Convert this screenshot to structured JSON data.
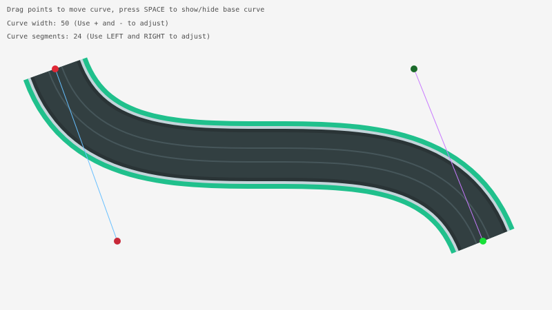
{
  "instructions": {
    "line1": "Drag points to move curve, press SPACE to show/hide base curve",
    "line2": "Curve width: 50 (Use + and - to adjust)",
    "line3": "Curve segments: 24 (Use LEFT and RIGHT to adjust)"
  },
  "curve": {
    "width": 50,
    "segments": 24,
    "start": {
      "x": 80,
      "y": 100
    },
    "start_control": {
      "x": 170,
      "y": 350
    },
    "end_control": {
      "x": 600,
      "y": 100
    },
    "end": {
      "x": 700,
      "y": 350
    }
  },
  "colors": {
    "background": "#f5f5f5",
    "border": "#20c08c",
    "edge": "#c4d4da",
    "shoulder": "#2a3436",
    "asphalt": "#323f41",
    "lane_line": "#46565a",
    "start_point": "#e02836",
    "start_control": "#c82838",
    "end_point": "#18e038",
    "end_control": "#1a6a2a",
    "start_handle": "#66bfff",
    "end_handle": "#c87aff"
  }
}
